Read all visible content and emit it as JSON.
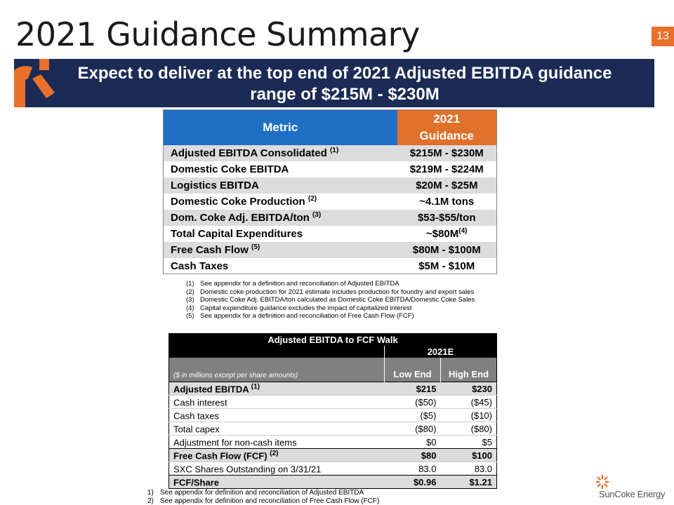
{
  "title": "2021 Guidance Summary",
  "page_number": "13",
  "banner": "Expect to deliver at the top end of 2021 Adjusted EBITDA guidance range of $215M - $230M",
  "guidance": {
    "headers": [
      "Metric",
      "2021",
      "Guidance"
    ],
    "rows": [
      {
        "label": "Adjusted EBITDA Consolidated",
        "note": "(1)",
        "value": "$215M - $230M"
      },
      {
        "label": "Domestic Coke EBITDA",
        "note": "",
        "value": "$219M - $224M"
      },
      {
        "label": "Logistics EBITDA",
        "note": "",
        "value": "$20M - $25M"
      },
      {
        "label": "Domestic Coke Production",
        "note": "(2)",
        "value": "~4.1M tons"
      },
      {
        "label": "Dom. Coke Adj. EBITDA/ton",
        "note": "(3)",
        "value": "$53-$55/ton"
      },
      {
        "label": "Total Capital Expenditures",
        "note": "",
        "value": "~$80M",
        "value_note": "(4)"
      },
      {
        "label": "Free Cash Flow",
        "note": "(5)",
        "value": "$80M - $100M"
      },
      {
        "label": "Cash Taxes",
        "note": "",
        "value": "$5M - $10M"
      }
    ],
    "colors": {
      "metric_header": "#1f6fc5",
      "guidance_header": "#e0702a"
    }
  },
  "footnotes_1": [
    {
      "n": "(1)",
      "text": "See appendix for a definition and reconciliation of Adjusted EBITDA"
    },
    {
      "n": "(2)",
      "text": "Domestic coke production for 2021 estimate includes production for foundry and export sales"
    },
    {
      "n": "(3)",
      "text": "Domestic Coke Adj. EBITDA/ton calculated as Domestic Coke EBITDA/Domestic Coke Sales"
    },
    {
      "n": "(4)",
      "text": "Capital expenditure guidance excludes the impact of capitalized interest"
    },
    {
      "n": "(5)",
      "text": "See appendix for a definition and reconciliation of Free Cash Flow (FCF)"
    }
  ],
  "walk": {
    "title": "Adjusted EBITDA to FCF Walk",
    "period": "2021E",
    "units": "($ in millions except per share amounts)",
    "low": "Low End",
    "high": "High End",
    "rows": [
      {
        "label": "Adjusted EBITDA",
        "note": "(1)",
        "low": "$215",
        "high": "$230",
        "bold": true
      },
      {
        "label": "Cash interest",
        "note": "",
        "low": "($50)",
        "high": "($45)"
      },
      {
        "label": "Cash taxes",
        "note": "",
        "low": "($5)",
        "high": "($10)"
      },
      {
        "label": "Total capex",
        "note": "",
        "low": "($80)",
        "high": "($80)"
      },
      {
        "label": "Adjustment for non-cash items",
        "note": "",
        "low": "$0",
        "high": "$5"
      },
      {
        "label": "Free Cash Flow (FCF)",
        "note": "(2)",
        "low": "$80",
        "high": "$100",
        "bold": true
      },
      {
        "label": "SXC Shares Outstanding on 3/31/21",
        "note": "",
        "low": "83.0",
        "high": "83.0"
      },
      {
        "label": "FCF/Share",
        "note": "",
        "low": "$0.96",
        "high": "$1.21",
        "bold": true
      }
    ]
  },
  "footnotes_2": [
    {
      "n": "1)",
      "text": "See appendix for definition and reconciliation of Adjusted EBITDA"
    },
    {
      "n": "2)",
      "text": "See appendix for definition and reconciliation of Free Cash Flow (FCF)"
    }
  ],
  "logo": {
    "text": "SunCoke Energy",
    "color": "#e8702a"
  }
}
